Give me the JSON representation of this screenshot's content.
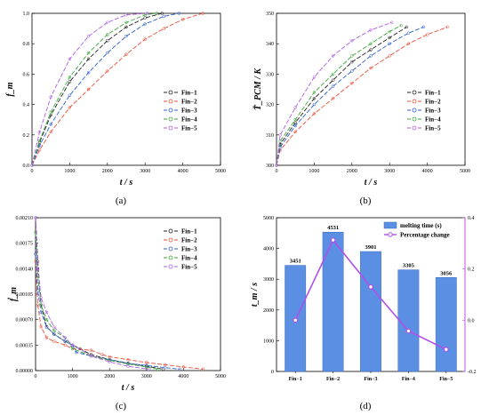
{
  "chart_data": [
    {
      "panel": "(a)",
      "type": "line",
      "xlabel": "t / s",
      "ylabel": "f_m",
      "xlim": [
        0,
        5000
      ],
      "ylim": [
        0,
        1.0
      ],
      "xticks": [
        "0",
        "1000",
        "2000",
        "3000",
        "4000",
        "5000"
      ],
      "yticks": [
        "0.0",
        "0.2",
        "0.4",
        "0.6",
        "0.8",
        "1.0"
      ],
      "legend": "center-right",
      "series": [
        {
          "name": "Fin−1",
          "color": "#222222",
          "x": [
            0,
            200,
            500,
            1000,
            1500,
            2000,
            2500,
            3000,
            3451
          ],
          "y": [
            0,
            0.15,
            0.33,
            0.55,
            0.7,
            0.82,
            0.91,
            0.97,
            1.0
          ]
        },
        {
          "name": "Fin−2",
          "color": "#e8513a",
          "x": [
            0,
            200,
            500,
            1000,
            1500,
            2000,
            2500,
            3000,
            3500,
            4000,
            4531
          ],
          "y": [
            0,
            0.1,
            0.22,
            0.38,
            0.5,
            0.62,
            0.73,
            0.83,
            0.9,
            0.96,
            1.0
          ]
        },
        {
          "name": "Fin−3",
          "color": "#2e5fd1",
          "x": [
            0,
            200,
            500,
            1000,
            1500,
            2000,
            2500,
            3000,
            3500,
            3901
          ],
          "y": [
            0,
            0.13,
            0.27,
            0.46,
            0.61,
            0.74,
            0.85,
            0.93,
            0.98,
            1.0
          ]
        },
        {
          "name": "Fin−4",
          "color": "#3aa83a",
          "x": [
            0,
            200,
            500,
            1000,
            1500,
            2000,
            2500,
            3000,
            3305
          ],
          "y": [
            0,
            0.16,
            0.35,
            0.58,
            0.74,
            0.86,
            0.94,
            0.99,
            1.0
          ]
        },
        {
          "name": "Fin−5",
          "color": "#b05de0",
          "x": [
            0,
            200,
            500,
            1000,
            1500,
            2000,
            2500,
            3056
          ],
          "y": [
            0,
            0.22,
            0.45,
            0.7,
            0.85,
            0.94,
            0.99,
            1.0
          ]
        }
      ]
    },
    {
      "panel": "(b)",
      "type": "line",
      "xlabel": "t / s",
      "ylabel": "T̄_PCM / K",
      "xlim": [
        0,
        5000
      ],
      "ylim": [
        300,
        350
      ],
      "xticks": [
        "0",
        "1000",
        "2000",
        "3000",
        "4000",
        "5000"
      ],
      "yticks": [
        "300",
        "310",
        "320",
        "330",
        "340",
        "350"
      ],
      "legend": "center-right",
      "series": [
        {
          "name": "Fin−1",
          "color": "#222222",
          "x": [
            0,
            100,
            500,
            1000,
            1500,
            2000,
            2500,
            3000,
            3451
          ],
          "y": [
            300,
            307,
            314,
            322,
            328,
            334,
            338,
            342,
            345.5
          ]
        },
        {
          "name": "Fin−2",
          "color": "#e8513a",
          "x": [
            0,
            100,
            500,
            1000,
            1500,
            2000,
            2500,
            3000,
            3500,
            4000,
            4531
          ],
          "y": [
            300,
            305,
            311,
            317,
            322,
            327,
            332,
            336,
            340,
            343,
            345.5
          ]
        },
        {
          "name": "Fin−3",
          "color": "#2e5fd1",
          "x": [
            0,
            100,
            500,
            1000,
            1500,
            2000,
            2500,
            3000,
            3500,
            3901
          ],
          "y": [
            300,
            306,
            313,
            320,
            326,
            331,
            336,
            340,
            343.5,
            345.5
          ]
        },
        {
          "name": "Fin−4",
          "color": "#3aa83a",
          "x": [
            0,
            100,
            500,
            1000,
            1500,
            2000,
            2500,
            3000,
            3305
          ],
          "y": [
            300,
            308,
            315,
            324,
            330,
            336,
            340,
            344,
            346
          ]
        },
        {
          "name": "Fin−5",
          "color": "#b05de0",
          "x": [
            0,
            100,
            500,
            1000,
            1500,
            2000,
            2500,
            3056
          ],
          "y": [
            300,
            310,
            319,
            329,
            336,
            341,
            344.5,
            347
          ]
        }
      ]
    },
    {
      "panel": "(c)",
      "type": "line",
      "xlabel": "t / s",
      "ylabel": "ḟ_m",
      "xlim": [
        0,
        5000
      ],
      "ylim": [
        0,
        0.0021
      ],
      "xticks": [
        "0",
        "1000",
        "2000",
        "3000",
        "4000",
        "5000"
      ],
      "yticks": [
        "0.00000",
        "0.00035",
        "0.00070",
        "0.00105",
        "0.00140",
        "0.00175",
        "0.00210"
      ],
      "legend": "center-right",
      "series": [
        {
          "name": "Fin−1",
          "color": "#222222",
          "x": [
            0,
            60,
            150,
            300,
            500,
            800,
            1000,
            1200,
            1500,
            2000,
            2500,
            3000,
            3451
          ],
          "y": [
            0.0021,
            0.0015,
            0.0009,
            0.0006,
            0.0005,
            0.0004,
            0.00035,
            0.0003,
            0.00022,
            0.00015,
            0.0001,
            6e-05,
            2e-05
          ]
        },
        {
          "name": "Fin−2",
          "color": "#e8513a",
          "x": [
            0,
            60,
            150,
            300,
            500,
            800,
            1000,
            1500,
            1800,
            2000,
            2500,
            3000,
            3500,
            4000,
            4531
          ],
          "y": [
            0.0015,
            0.0009,
            0.0006,
            0.00045,
            0.0004,
            0.00035,
            0.0003,
            0.00028,
            0.00022,
            0.00019,
            0.00015,
            0.00011,
            8e-05,
            5e-05,
            2e-05
          ]
        },
        {
          "name": "Fin−3",
          "color": "#2e5fd1",
          "x": [
            0,
            60,
            150,
            300,
            500,
            800,
            1000,
            1100,
            1500,
            2000,
            2500,
            3000,
            3500,
            3901
          ],
          "y": [
            0.0016,
            0.0011,
            0.0008,
            0.0006,
            0.0005,
            0.0004,
            0.00035,
            0.00025,
            0.0002,
            0.00015,
            0.0001,
            7e-05,
            4e-05,
            2e-05
          ]
        },
        {
          "name": "Fin−4",
          "color": "#3aa83a",
          "x": [
            0,
            60,
            150,
            300,
            500,
            800,
            1000,
            1500,
            2000,
            2500,
            3000,
            3305
          ],
          "y": [
            0.0019,
            0.0013,
            0.0009,
            0.0007,
            0.00055,
            0.00045,
            0.0003,
            0.0002,
            0.00014,
            9e-05,
            5e-05,
            2e-05
          ]
        },
        {
          "name": "Fin−5",
          "color": "#b05de0",
          "x": [
            0,
            60,
            150,
            300,
            500,
            800,
            1000,
            1500,
            2000,
            2500,
            3056
          ],
          "y": [
            0.0021,
            0.0014,
            0.001,
            0.0008,
            0.0006,
            0.00045,
            0.00035,
            0.0002,
            0.00012,
            6e-05,
            2e-05
          ]
        }
      ]
    },
    {
      "panel": "(d)",
      "type": "bar",
      "categories": [
        "Fin−1",
        "Fin−2",
        "Fin−3",
        "Fin−4",
        "Fin−5"
      ],
      "ylabel": "t_m / s",
      "ylim": [
        0,
        5000
      ],
      "yticks": [
        "0",
        "1000",
        "2000",
        "3000",
        "4000",
        "5000"
      ],
      "y2lim": [
        -0.2,
        0.4
      ],
      "y2ticks": [
        "-0.2",
        "0.0",
        "0.2",
        "0.4"
      ],
      "legend": "top-right",
      "series": [
        {
          "name": "melting time (s)",
          "color": "#5b8fe3",
          "values": [
            3451,
            4531,
            3901,
            3305,
            3056
          ],
          "labels": [
            "3451",
            "4531",
            "3901",
            "3305",
            "3056"
          ]
        },
        {
          "name": "Percentage change",
          "color": "#b050e8",
          "values": [
            0.0,
            0.313,
            0.13,
            -0.042,
            -0.114
          ]
        }
      ]
    }
  ]
}
